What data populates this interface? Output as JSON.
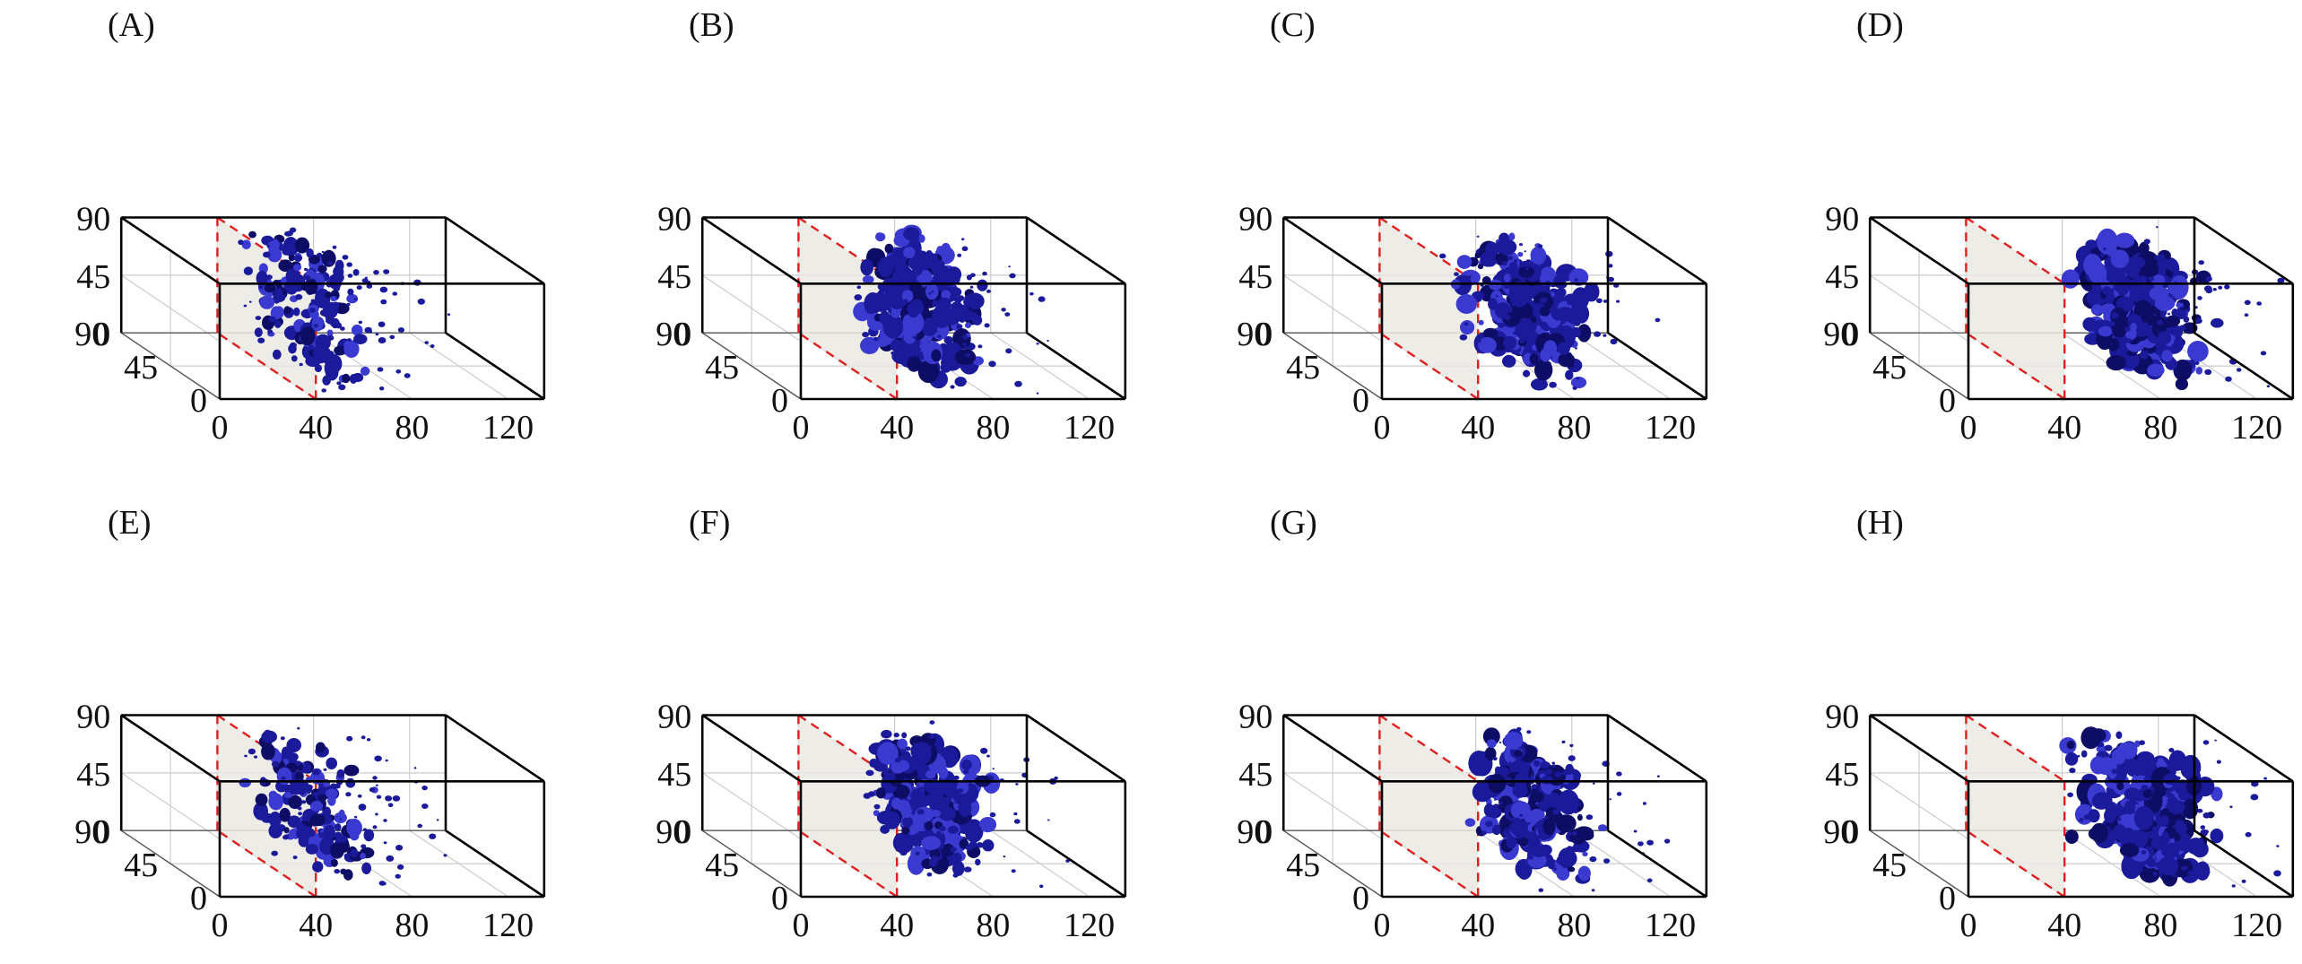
{
  "chart_data": [
    {
      "label": "(A)",
      "type": "3d-isosurface",
      "x_ticks": [
        "0",
        "40",
        "80",
        "120"
      ],
      "y_ticks": [
        "0",
        "45",
        "90"
      ],
      "z_ticks": [
        "0",
        "45",
        "90"
      ],
      "plane_x": 40,
      "cluster": {
        "x_center": 58,
        "x_width": 16,
        "spread": "sparse"
      }
    },
    {
      "label": "(B)",
      "type": "3d-isosurface",
      "x_ticks": [
        "0",
        "40",
        "80",
        "120"
      ],
      "y_ticks": [
        "0",
        "45",
        "90"
      ],
      "z_ticks": [
        "0",
        "45",
        "90"
      ],
      "plane_x": 40,
      "cluster": {
        "x_center": 72,
        "x_width": 20,
        "spread": "medium"
      }
    },
    {
      "label": "(C)",
      "type": "3d-isosurface",
      "x_ticks": [
        "0",
        "40",
        "80",
        "120"
      ],
      "y_ticks": [
        "0",
        "45",
        "90"
      ],
      "z_ticks": [
        "0",
        "45",
        "90"
      ],
      "plane_x": 40,
      "cluster": {
        "x_center": 80,
        "x_width": 20,
        "spread": "medium"
      }
    },
    {
      "label": "(D)",
      "type": "3d-isosurface",
      "x_ticks": [
        "0",
        "40",
        "80",
        "120"
      ],
      "y_ticks": [
        "0",
        "45",
        "90"
      ],
      "z_ticks": [
        "0",
        "45",
        "90"
      ],
      "plane_x": 40,
      "cluster": {
        "x_center": 92,
        "x_width": 22,
        "spread": "dense"
      }
    },
    {
      "label": "(E)",
      "type": "3d-isosurface",
      "x_ticks": [
        "0",
        "40",
        "80",
        "120"
      ],
      "y_ticks": [
        "0",
        "45",
        "90"
      ],
      "z_ticks": [
        "0",
        "45",
        "90"
      ],
      "plane_x": 40,
      "cluster": {
        "x_center": 60,
        "x_width": 16,
        "spread": "sparse"
      }
    },
    {
      "label": "(F)",
      "type": "3d-isosurface",
      "x_ticks": [
        "0",
        "40",
        "80",
        "120"
      ],
      "y_ticks": [
        "0",
        "45",
        "90"
      ],
      "z_ticks": [
        "0",
        "45",
        "90"
      ],
      "plane_x": 40,
      "cluster": {
        "x_center": 74,
        "x_width": 20,
        "spread": "medium"
      }
    },
    {
      "label": "(G)",
      "type": "3d-isosurface",
      "x_ticks": [
        "0",
        "40",
        "80",
        "120"
      ],
      "y_ticks": [
        "0",
        "45",
        "90"
      ],
      "z_ticks": [
        "0",
        "45",
        "90"
      ],
      "plane_x": 40,
      "cluster": {
        "x_center": 82,
        "x_width": 20,
        "spread": "medium"
      }
    },
    {
      "label": "(H)",
      "type": "3d-isosurface",
      "x_ticks": [
        "0",
        "40",
        "80",
        "120"
      ],
      "y_ticks": [
        "0",
        "45",
        "90"
      ],
      "z_ticks": [
        "0",
        "45",
        "90"
      ],
      "plane_x": 40,
      "cluster": {
        "x_center": 94,
        "x_width": 22,
        "spread": "dense"
      }
    }
  ],
  "colors": {
    "isosurface": "#1a1a9a",
    "isosurface_dark": "#0d0d66",
    "isosurface_light": "#3a3ad0",
    "plane": "#ebe9e3",
    "plane_edge": "#e02020",
    "axes": "#000000",
    "grid": "#cccccc"
  }
}
